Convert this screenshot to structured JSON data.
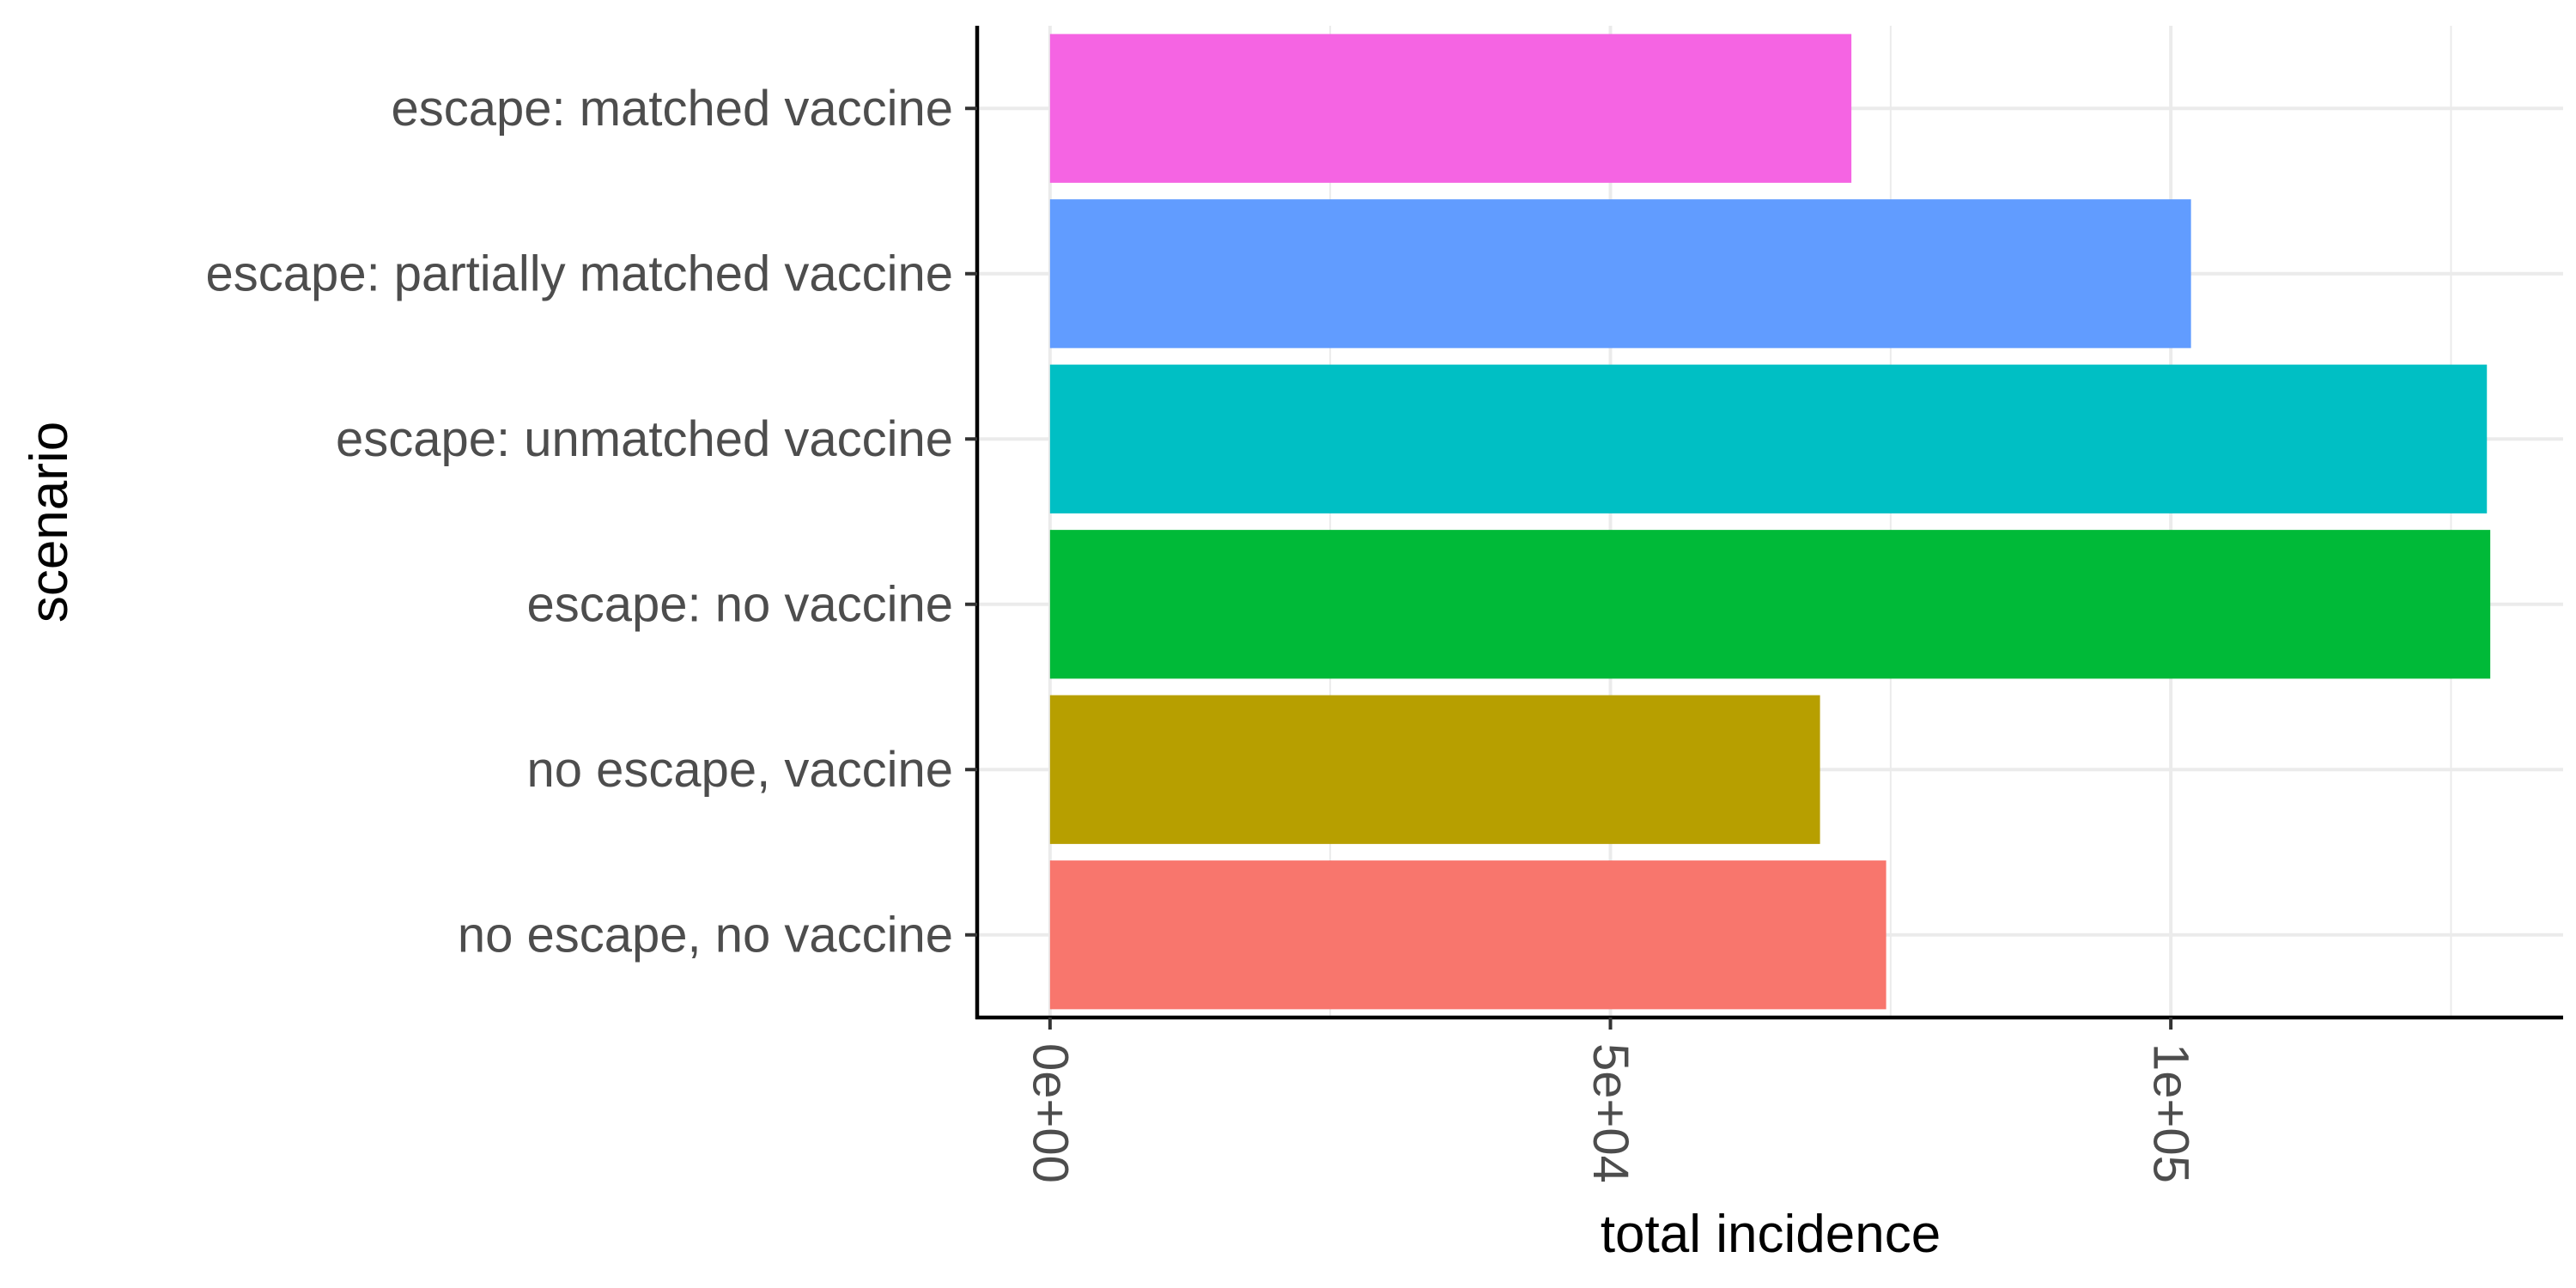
{
  "chart_data": {
    "type": "bar",
    "orientation": "horizontal",
    "xlabel": "total incidence",
    "ylabel": "scenario",
    "xlim": [
      -6500,
      135000
    ],
    "xticks": [
      {
        "value": 0,
        "label": "0e+00"
      },
      {
        "value": 50000,
        "label": "5e+04"
      },
      {
        "value": 100000,
        "label": "1e+05"
      }
    ],
    "x_minor_gridlines": [
      25000,
      75000,
      125000
    ],
    "grid": true,
    "legend": "none",
    "categories": [
      "no escape, no vaccine",
      "no escape, vaccine",
      "escape: no vaccine",
      "escape: unmatched vaccine",
      "escape: partially matched vaccine",
      "escape: matched vaccine"
    ],
    "values": [
      74600,
      68700,
      128500,
      128200,
      101800,
      71500
    ],
    "colors": [
      "#F8766D",
      "#B79F00",
      "#00BA38",
      "#00BFC4",
      "#619CFF",
      "#F564E3"
    ]
  }
}
